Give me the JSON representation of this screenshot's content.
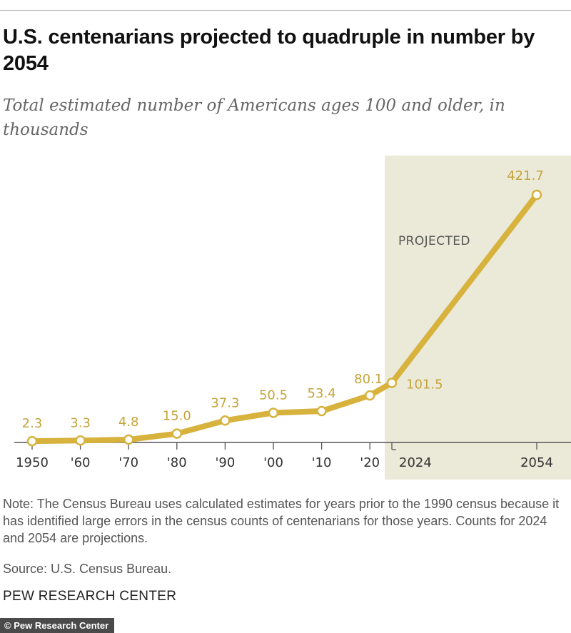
{
  "header": {
    "title": "U.S. centenarians projected to quadruple in number by 2054",
    "subtitle": "Total estimated number of Americans ages 100 and older, in thousands"
  },
  "footer": {
    "note": "Note: The Census Bureau uses calculated estimates for years prior to the 1990 census because it has identified large errors in the census counts of centenarians for those years. Counts for 2024 and 2054 are projections.",
    "source": "Source: U.S. Census Bureau.",
    "brand": "PEW RESEARCH CENTER",
    "credit": "© Pew Research Center"
  },
  "chart_data": {
    "type": "line",
    "title": "U.S. centenarians projected to quadruple in number by 2054",
    "subtitle": "Total estimated number of Americans ages 100 and older, in thousands",
    "x": [
      1950,
      1960,
      1970,
      1980,
      1990,
      2000,
      2010,
      2020,
      2024,
      2054
    ],
    "x_tick_labels": [
      "1950",
      "'60",
      "'70",
      "'80",
      "'90",
      "'00",
      "'10",
      "'20",
      "2024",
      "2054"
    ],
    "series": [
      {
        "values": [
          2.3,
          3.3,
          4.8,
          15.0,
          37.3,
          50.5,
          53.4,
          80.1,
          101.5,
          421.7
        ],
        "data_labels": [
          "2.3",
          "3.3",
          "4.8",
          "15.0",
          "37.3",
          "50.5",
          "53.4",
          "80.1",
          "101.5",
          "421.7"
        ]
      }
    ],
    "ylim": [
      0,
      440
    ],
    "xlabel": "",
    "ylabel": "",
    "grid": false,
    "legend": "none",
    "shaded_region": {
      "label": "PROJECTED",
      "from": 2024,
      "to": 2054
    },
    "colors": {
      "line": "#d7b23c",
      "label": "#c4a43b",
      "shade": "#ebead9",
      "axis": "#555555",
      "tick_text": "#333333"
    }
  }
}
